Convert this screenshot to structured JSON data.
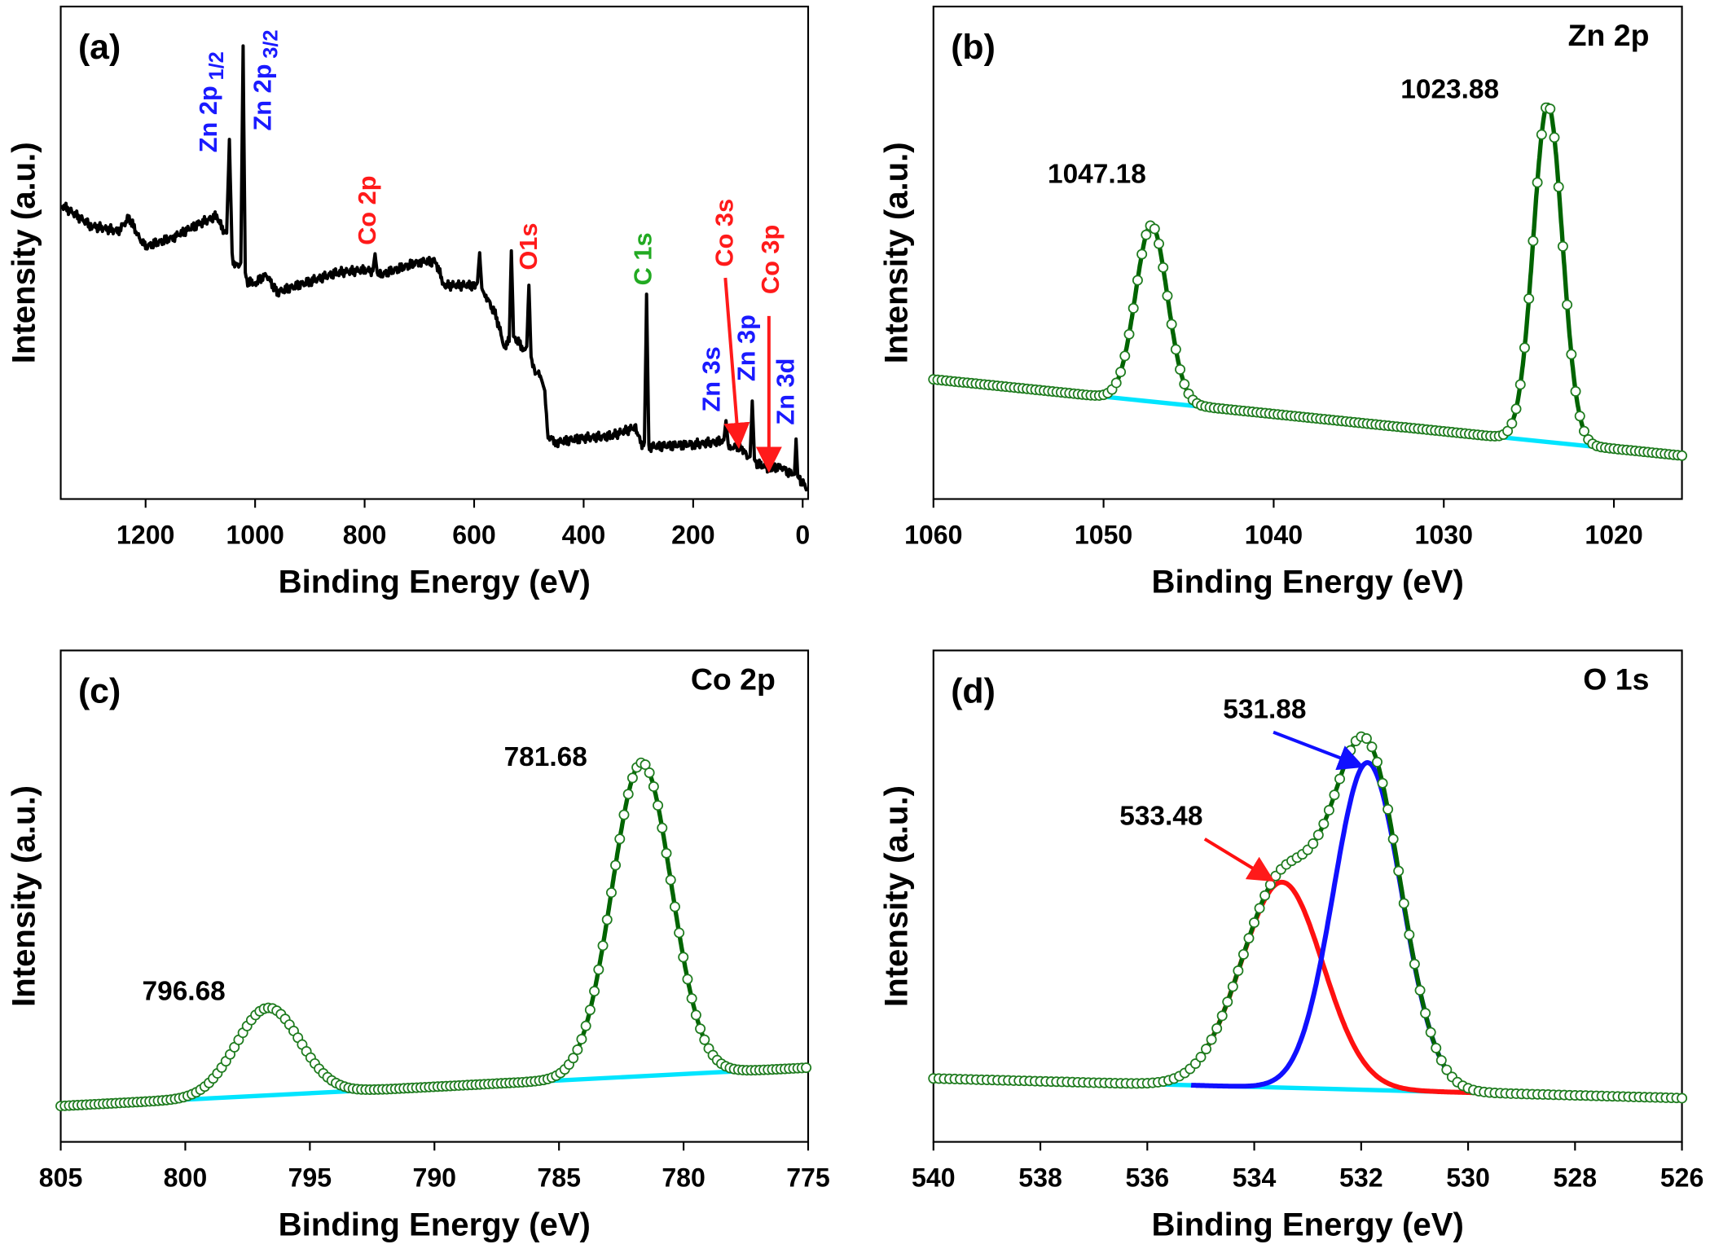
{
  "colors": {
    "survey_line": "#000000",
    "fit_line": "#006400",
    "marker_stroke": "#1e7b1e",
    "background_line": "#00e5ff",
    "zn_label": "#1a1aff",
    "co_label": "#ff1a1a",
    "c_label": "#22aa22",
    "component_red": "#ff1010",
    "component_blue": "#1010ff"
  },
  "chart_data": [
    {
      "panel_label": "(a)",
      "type": "line",
      "title": "",
      "xlabel": "Binding Energy (eV)",
      "ylabel": "Intensity (a.u.)",
      "xlim": [
        1355,
        -10
      ],
      "xticks": [
        1200,
        1000,
        800,
        600,
        400,
        200,
        0
      ],
      "ylim": [
        0,
        100
      ],
      "grid": false,
      "series": [
        {
          "x": [
            1353,
            1300,
            1250,
            1230,
            1210,
            1200,
            1150,
            1100,
            1070,
            1060,
            1052,
            1047,
            1042,
            1040,
            1030,
            1026,
            1022,
            1018,
            1015,
            1000,
            980,
            960,
            900,
            850,
            800,
            785,
            781,
            777,
            770,
            700,
            670,
            655,
            600,
            594,
            590,
            586,
            580,
            560,
            545,
            536,
            532,
            528,
            525,
            510,
            504,
            500,
            496,
            490,
            479,
            475,
            471,
            465,
            450,
            400,
            350,
            305,
            295,
            289,
            285,
            281,
            280,
            200,
            150,
            144,
            140,
            136,
            130,
            112,
            100,
            96,
            92,
            88,
            85,
            60,
            40,
            20,
            15,
            12,
            9,
            5,
            -8
          ],
          "y": [
            59.7,
            55.5,
            54.4,
            57.1,
            52.7,
            51.3,
            53.1,
            56.0,
            57.5,
            54.9,
            54,
            73.0,
            50,
            48.2,
            47.1,
            48,
            92.0,
            46,
            44.2,
            43.8,
            45.6,
            42.0,
            44.2,
            46.0,
            46.5,
            46.3,
            49.8,
            46,
            45.6,
            48.2,
            48.2,
            43.4,
            43.4,
            44,
            50.0,
            43,
            41.6,
            37.2,
            31.0,
            32,
            50.4,
            33,
            32.7,
            30.5,
            31,
            43.4,
            29,
            26.1,
            25,
            23.5,
            22,
            12.8,
            11.5,
            12.4,
            12.8,
            14.6,
            11.1,
            11.5,
            41.6,
            11,
            10.6,
            11.1,
            11.7,
            12,
            15.9,
            11,
            10.6,
            10.6,
            8.4,
            8.6,
            19.9,
            8,
            7.3,
            6.2,
            6.6,
            4.9,
            5,
            12.2,
            4.5,
            4.0,
            2.2
          ]
        }
      ],
      "annotations": [
        {
          "text": "Zn 2p",
          "sub": "1/2",
          "energy": 1044.9,
          "color_key": "zn_label"
        },
        {
          "text": "Zn 2p",
          "sub": "3/2",
          "energy": 1021.8,
          "color_key": "zn_label"
        },
        {
          "text": "Co 2p",
          "sub": "",
          "energy": 781,
          "color_key": "co_label"
        },
        {
          "text": "O1s",
          "sub": "",
          "energy": 531,
          "color_key": "co_label"
        },
        {
          "text": "C 1s",
          "sub": "",
          "energy": 285,
          "color_key": "c_label"
        },
        {
          "text": "Co 3s",
          "sub": "",
          "energy": 112,
          "color_key": "co_label",
          "arrow": true
        },
        {
          "text": "Co 3p",
          "sub": "",
          "energy": 60,
          "color_key": "co_label",
          "arrow": true
        },
        {
          "text": "Zn 3p",
          "sub": "",
          "energy": 90,
          "color_key": "zn_label"
        },
        {
          "text": "Zn 3s",
          "sub": "",
          "energy": 140,
          "color_key": "zn_label"
        },
        {
          "text": "Zn 3d",
          "sub": "",
          "energy": 10,
          "color_key": "zn_label"
        }
      ]
    },
    {
      "panel_label": "(b)",
      "type": "scatter",
      "title": "Zn 2p",
      "xlabel": "Binding Energy (eV)",
      "ylabel": "Intensity (a.u.)",
      "xlim": [
        1060,
        1016
      ],
      "xticks": [
        1060,
        1050,
        1040,
        1030,
        1020
      ],
      "ylim": [
        0,
        100
      ],
      "grid": false,
      "background": {
        "x": [
          1060,
          1016
        ],
        "y": [
          24.3,
          8.8
        ]
      },
      "peaks": [
        {
          "center": 1047.18,
          "height": 35.8,
          "fwhm": 2.2,
          "label": "1047.18"
        },
        {
          "center": 1023.88,
          "height": 68.5,
          "fwhm": 2.0,
          "label": "1023.88"
        }
      ]
    },
    {
      "panel_label": "(c)",
      "type": "scatter",
      "title": "Co 2p",
      "xlabel": "Binding Energy (eV)",
      "ylabel": "Intensity (a.u.)",
      "xlim": [
        805,
        775
      ],
      "xticks": [
        805,
        800,
        795,
        790,
        785,
        780,
        775
      ],
      "ylim": [
        0,
        100
      ],
      "grid": false,
      "background": {
        "x": [
          805,
          775
        ],
        "y": [
          7.3,
          15.1
        ]
      },
      "peaks": [
        {
          "center": 796.68,
          "height": 17.8,
          "fwhm": 3.0,
          "label": "796.68"
        },
        {
          "center": 781.68,
          "height": 63.8,
          "fwhm": 2.8,
          "label": "781.68"
        }
      ]
    },
    {
      "panel_label": "(d)",
      "type": "scatter",
      "title": "O 1s",
      "xlabel": "Binding Energy (eV)",
      "ylabel": "Intensity (a.u.)",
      "xlim": [
        540,
        526
      ],
      "xticks": [
        540,
        538,
        536,
        534,
        532,
        530,
        528,
        526
      ],
      "ylim": [
        0,
        100
      ],
      "grid": false,
      "background": {
        "x": [
          540,
          526
        ],
        "y": [
          12.9,
          8.9
        ]
      },
      "background_drawn_range": [
        536,
        529.6
      ],
      "peaks": [
        {
          "center": 533.48,
          "height": 41.8,
          "fwhm": 1.8,
          "label": "533.48",
          "color_key": "component_red"
        },
        {
          "center": 531.88,
          "height": 66.6,
          "fwhm": 1.5,
          "label": "531.88",
          "color_key": "component_blue"
        }
      ]
    }
  ]
}
